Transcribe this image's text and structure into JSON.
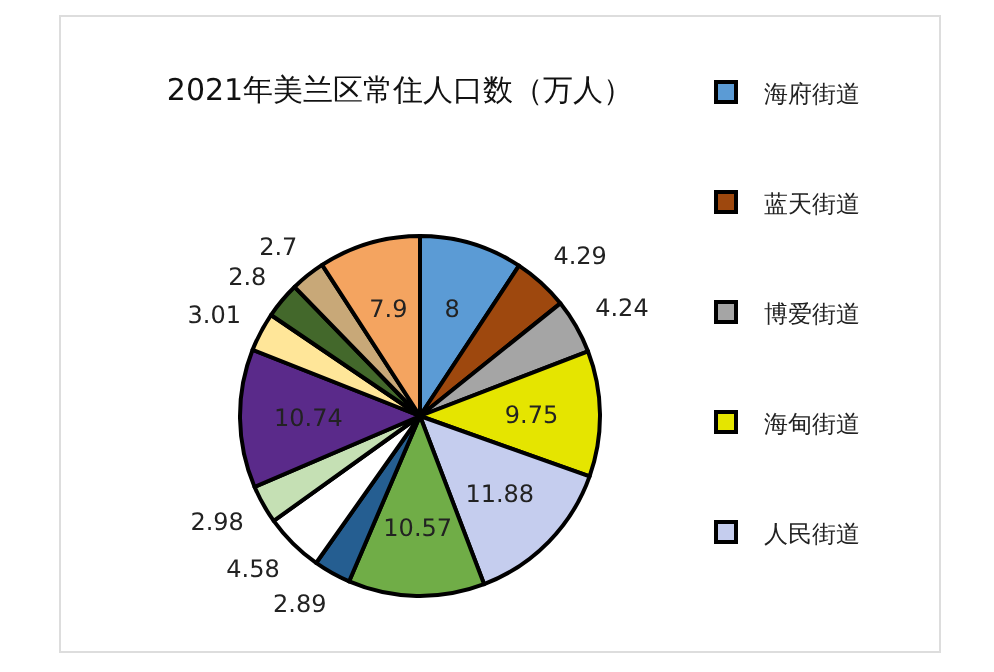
{
  "chart_data": {
    "type": "pie",
    "title": "2021年美兰区常住人口数（万人）",
    "categories": [
      "海府街道",
      "蓝天街道",
      "博爱街道",
      "海甸街道",
      "人民街道",
      null,
      null,
      null,
      null,
      null,
      null,
      null,
      null,
      null
    ],
    "values": [
      8,
      4.29,
      4.24,
      9.75,
      11.88,
      10.57,
      2.89,
      4.58,
      2.98,
      10.74,
      3.01,
      2.8,
      2.7,
      7.9
    ],
    "colors": [
      "#5b9bd5",
      "#9e480e",
      "#a5a5a5",
      "#e5e500",
      "#c5cdee",
      "#70ad47",
      "#255e91",
      "#ffffff",
      "#c5e0b4",
      "#5a2a8a",
      "#ffe699",
      "#43682b",
      "#c8a878",
      "#f4a460"
    ],
    "data_labels": true,
    "legend": "right"
  }
}
